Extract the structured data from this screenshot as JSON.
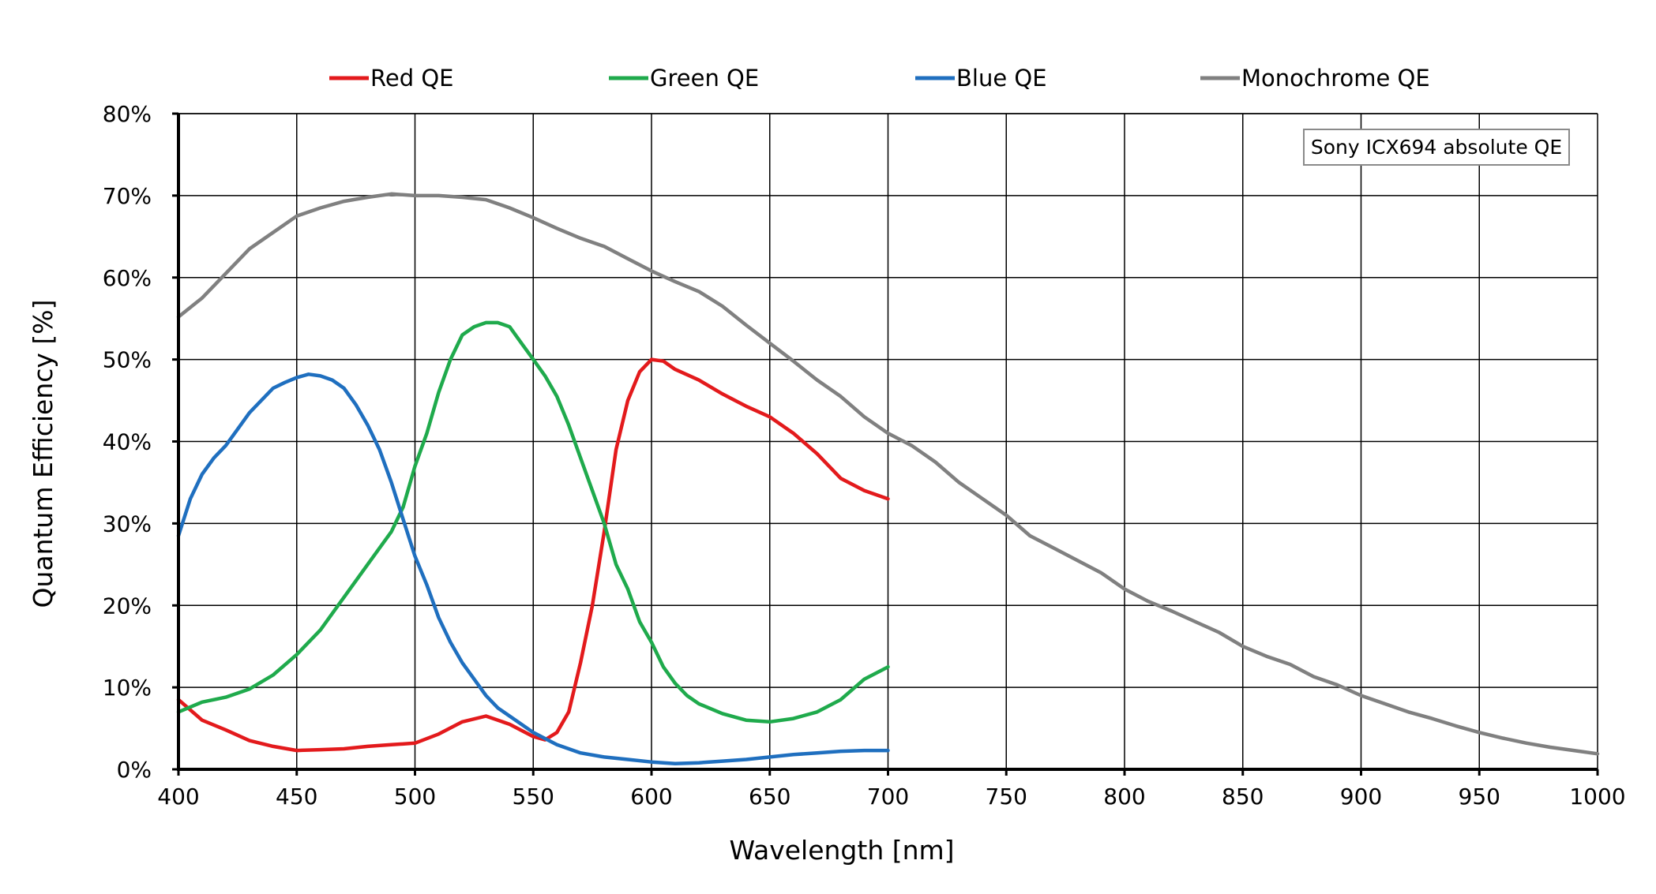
{
  "chart_data": {
    "type": "line",
    "title": "",
    "xlabel": "Wavelength [nm]",
    "ylabel": "Quantum Efficiency [%]",
    "xlim": [
      400,
      1000
    ],
    "ylim": [
      0,
      80
    ],
    "x_ticks": [
      400,
      450,
      500,
      550,
      600,
      650,
      700,
      750,
      800,
      850,
      900,
      950,
      1000
    ],
    "x_tick_labels": [
      "400",
      "450",
      "500",
      "550",
      "600",
      "650",
      "700",
      "750",
      "800",
      "850",
      "900",
      "950",
      "1000"
    ],
    "y_ticks": [
      0,
      10,
      20,
      30,
      40,
      50,
      60,
      70,
      80
    ],
    "y_tick_labels": [
      "0%",
      "10%",
      "20%",
      "30%",
      "40%",
      "50%",
      "60%",
      "70%",
      "80%"
    ],
    "grid": true,
    "legend_position": "top",
    "annotation": "Sony ICX694 absolute QE",
    "series": [
      {
        "name": "Red QE",
        "color": "#e31a1c",
        "points": [
          [
            400,
            8.5
          ],
          [
            410,
            6.0
          ],
          [
            420,
            4.8
          ],
          [
            430,
            3.5
          ],
          [
            440,
            2.8
          ],
          [
            450,
            2.3
          ],
          [
            460,
            2.4
          ],
          [
            470,
            2.5
          ],
          [
            480,
            2.8
          ],
          [
            490,
            3.0
          ],
          [
            500,
            3.2
          ],
          [
            510,
            4.3
          ],
          [
            520,
            5.8
          ],
          [
            530,
            6.5
          ],
          [
            540,
            5.5
          ],
          [
            550,
            4.0
          ],
          [
            555,
            3.6
          ],
          [
            560,
            4.5
          ],
          [
            565,
            7.0
          ],
          [
            570,
            13.0
          ],
          [
            575,
            20.0
          ],
          [
            580,
            29.0
          ],
          [
            585,
            39.0
          ],
          [
            590,
            45.0
          ],
          [
            595,
            48.5
          ],
          [
            600,
            50.0
          ],
          [
            605,
            49.8
          ],
          [
            610,
            48.8
          ],
          [
            620,
            47.5
          ],
          [
            630,
            45.8
          ],
          [
            640,
            44.3
          ],
          [
            650,
            43.0
          ],
          [
            660,
            41.0
          ],
          [
            670,
            38.5
          ],
          [
            680,
            35.5
          ],
          [
            690,
            34.0
          ],
          [
            700,
            33.0
          ]
        ]
      },
      {
        "name": "Green QE",
        "color": "#1faa4c",
        "points": [
          [
            400,
            7.0
          ],
          [
            410,
            8.2
          ],
          [
            420,
            8.8
          ],
          [
            430,
            9.8
          ],
          [
            440,
            11.5
          ],
          [
            450,
            14.0
          ],
          [
            460,
            17.0
          ],
          [
            470,
            21.0
          ],
          [
            480,
            25.0
          ],
          [
            490,
            29.0
          ],
          [
            495,
            32.0
          ],
          [
            500,
            37.0
          ],
          [
            505,
            41.0
          ],
          [
            510,
            46.0
          ],
          [
            515,
            50.0
          ],
          [
            520,
            53.0
          ],
          [
            525,
            54.0
          ],
          [
            530,
            54.5
          ],
          [
            535,
            54.5
          ],
          [
            540,
            54.0
          ],
          [
            545,
            52.0
          ],
          [
            550,
            50.0
          ],
          [
            555,
            48.0
          ],
          [
            560,
            45.5
          ],
          [
            565,
            42.0
          ],
          [
            570,
            38.0
          ],
          [
            575,
            34.0
          ],
          [
            580,
            30.0
          ],
          [
            585,
            25.0
          ],
          [
            590,
            22.0
          ],
          [
            595,
            18.0
          ],
          [
            600,
            15.5
          ],
          [
            605,
            12.5
          ],
          [
            610,
            10.5
          ],
          [
            615,
            9.0
          ],
          [
            620,
            8.0
          ],
          [
            630,
            6.8
          ],
          [
            640,
            6.0
          ],
          [
            650,
            5.8
          ],
          [
            660,
            6.2
          ],
          [
            670,
            7.0
          ],
          [
            680,
            8.5
          ],
          [
            690,
            11.0
          ],
          [
            700,
            12.5
          ]
        ]
      },
      {
        "name": "Blue QE",
        "color": "#1f6fbf",
        "points": [
          [
            400,
            28.5
          ],
          [
            405,
            33.0
          ],
          [
            410,
            36.0
          ],
          [
            415,
            38.0
          ],
          [
            420,
            39.5
          ],
          [
            425,
            41.5
          ],
          [
            430,
            43.5
          ],
          [
            435,
            45.0
          ],
          [
            440,
            46.5
          ],
          [
            445,
            47.2
          ],
          [
            450,
            47.8
          ],
          [
            455,
            48.2
          ],
          [
            460,
            48.0
          ],
          [
            465,
            47.5
          ],
          [
            470,
            46.5
          ],
          [
            475,
            44.5
          ],
          [
            480,
            42.0
          ],
          [
            485,
            39.0
          ],
          [
            490,
            35.0
          ],
          [
            495,
            30.5
          ],
          [
            500,
            26.0
          ],
          [
            505,
            22.5
          ],
          [
            510,
            18.5
          ],
          [
            515,
            15.5
          ],
          [
            520,
            13.0
          ],
          [
            525,
            11.0
          ],
          [
            530,
            9.0
          ],
          [
            535,
            7.5
          ],
          [
            540,
            6.5
          ],
          [
            550,
            4.5
          ],
          [
            560,
            3.0
          ],
          [
            570,
            2.0
          ],
          [
            580,
            1.5
          ],
          [
            590,
            1.2
          ],
          [
            600,
            0.9
          ],
          [
            610,
            0.7
          ],
          [
            620,
            0.8
          ],
          [
            630,
            1.0
          ],
          [
            640,
            1.2
          ],
          [
            650,
            1.5
          ],
          [
            660,
            1.8
          ],
          [
            670,
            2.0
          ],
          [
            680,
            2.2
          ],
          [
            690,
            2.3
          ],
          [
            700,
            2.3
          ]
        ]
      },
      {
        "name": "Monochrome QE",
        "color": "#808080",
        "points": [
          [
            400,
            55.2
          ],
          [
            410,
            57.5
          ],
          [
            420,
            60.5
          ],
          [
            430,
            63.5
          ],
          [
            440,
            65.5
          ],
          [
            450,
            67.5
          ],
          [
            460,
            68.5
          ],
          [
            470,
            69.3
          ],
          [
            480,
            69.8
          ],
          [
            490,
            70.2
          ],
          [
            500,
            70.0
          ],
          [
            510,
            70.0
          ],
          [
            520,
            69.8
          ],
          [
            530,
            69.5
          ],
          [
            540,
            68.5
          ],
          [
            550,
            67.3
          ],
          [
            560,
            66.0
          ],
          [
            570,
            64.8
          ],
          [
            580,
            63.8
          ],
          [
            590,
            62.3
          ],
          [
            600,
            60.8
          ],
          [
            610,
            59.5
          ],
          [
            620,
            58.3
          ],
          [
            630,
            56.5
          ],
          [
            640,
            54.2
          ],
          [
            650,
            52.0
          ],
          [
            660,
            49.8
          ],
          [
            670,
            47.5
          ],
          [
            680,
            45.5
          ],
          [
            690,
            43.0
          ],
          [
            700,
            41.0
          ],
          [
            710,
            39.5
          ],
          [
            720,
            37.5
          ],
          [
            730,
            35.0
          ],
          [
            740,
            33.0
          ],
          [
            750,
            31.0
          ],
          [
            760,
            28.5
          ],
          [
            770,
            27.0
          ],
          [
            780,
            25.5
          ],
          [
            790,
            24.0
          ],
          [
            800,
            22.0
          ],
          [
            810,
            20.5
          ],
          [
            820,
            19.3
          ],
          [
            830,
            18.0
          ],
          [
            840,
            16.7
          ],
          [
            850,
            15.0
          ],
          [
            860,
            13.8
          ],
          [
            870,
            12.8
          ],
          [
            880,
            11.3
          ],
          [
            890,
            10.3
          ],
          [
            900,
            9.0
          ],
          [
            910,
            8.0
          ],
          [
            920,
            7.0
          ],
          [
            930,
            6.2
          ],
          [
            940,
            5.3
          ],
          [
            950,
            4.5
          ],
          [
            960,
            3.8
          ],
          [
            970,
            3.2
          ],
          [
            980,
            2.7
          ],
          [
            990,
            2.3
          ],
          [
            1000,
            1.9
          ]
        ]
      }
    ]
  }
}
